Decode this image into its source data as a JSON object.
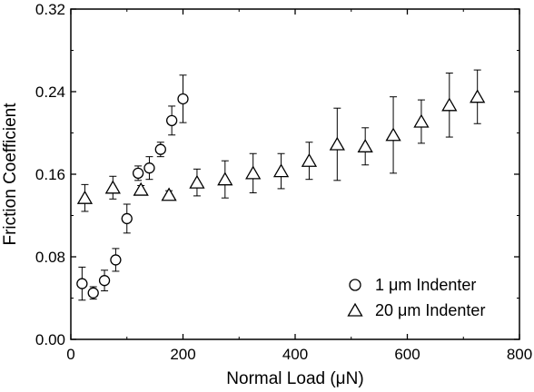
{
  "chart_data": {
    "type": "scatter",
    "xlabel": "Normal Load (μN)",
    "ylabel": "Friction Coefficient",
    "xlim": [
      0,
      800
    ],
    "ylim": [
      0.0,
      0.32
    ],
    "xticks": [
      0,
      200,
      400,
      600,
      800
    ],
    "xtick_labels": [
      "0",
      "200",
      "400",
      "600",
      "800"
    ],
    "yticks": [
      0.0,
      0.08,
      0.16,
      0.24,
      0.32
    ],
    "ytick_labels": [
      "0.00",
      "0.08",
      "0.16",
      "0.24",
      "0.32"
    ],
    "grid": false,
    "legend_position": "bottom-right",
    "series": [
      {
        "name": "1 μm Indenter",
        "marker": "circle",
        "x": [
          20,
          40,
          60,
          80,
          100,
          120,
          140,
          160,
          180,
          200
        ],
        "y": [
          0.054,
          0.045,
          0.057,
          0.077,
          0.117,
          0.161,
          0.166,
          0.184,
          0.212,
          0.233
        ],
        "err": [
          0.016,
          0.006,
          0.01,
          0.011,
          0.014,
          0.007,
          0.011,
          0.007,
          0.014,
          0.023
        ]
      },
      {
        "name": "20 μm Indenter",
        "marker": "triangle",
        "x": [
          25,
          75,
          125,
          175,
          225,
          275,
          325,
          375,
          425,
          475,
          525,
          575,
          625,
          675,
          725
        ],
        "y": [
          0.137,
          0.147,
          0.145,
          0.14,
          0.152,
          0.155,
          0.161,
          0.163,
          0.173,
          0.189,
          0.187,
          0.198,
          0.211,
          0.227,
          0.235
        ],
        "err": [
          0.013,
          0.011,
          0.004,
          0.004,
          0.013,
          0.018,
          0.019,
          0.017,
          0.018,
          0.035,
          0.018,
          0.037,
          0.021,
          0.031,
          0.026
        ]
      }
    ]
  }
}
